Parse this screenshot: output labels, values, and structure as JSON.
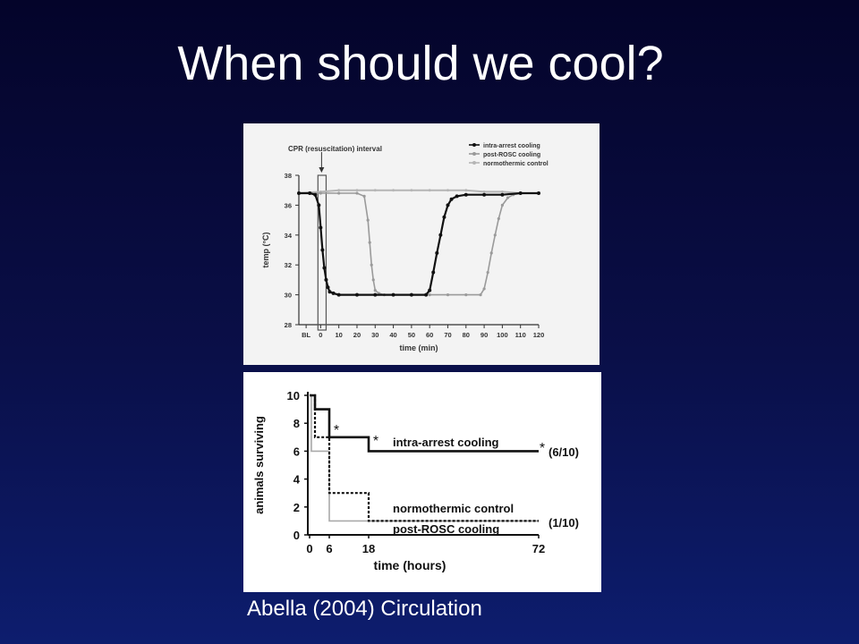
{
  "slide": {
    "title": "When should we cool?",
    "citation": "Abella (2004) Circulation"
  },
  "colors": {
    "background_top": "#04042a",
    "background_bottom": "#0d1d6e",
    "text": "#ffffff",
    "intra_arrest": "#111111",
    "post_rosc": "#9a9a9a",
    "normothermic": "#b5b5b5"
  },
  "chart_data": [
    {
      "type": "line",
      "title": "",
      "xlabel": "time (min)",
      "ylabel": "temp (°C)",
      "annotation": "CPR (resuscitation) interval",
      "x_ticks": [
        "BL",
        "0",
        "10",
        "20",
        "30",
        "40",
        "50",
        "60",
        "70",
        "80",
        "90",
        "100",
        "110",
        "120"
      ],
      "y_ticks": [
        28,
        30,
        32,
        34,
        36,
        38
      ],
      "xlim": [
        -12,
        120
      ],
      "ylim": [
        28,
        38
      ],
      "legend": [
        "intra-arrest cooling",
        "post-ROSC cooling",
        "normothermic control"
      ],
      "legend_position": "top-right",
      "series": [
        {
          "name": "intra-arrest cooling",
          "x": [
            -12,
            -6,
            -3,
            -1,
            0,
            1,
            2,
            3,
            4,
            5,
            7,
            10,
            20,
            30,
            40,
            50,
            58,
            60,
            62,
            64,
            66,
            68,
            70,
            72,
            75,
            80,
            90,
            100,
            110,
            120
          ],
          "y": [
            36.8,
            36.8,
            36.7,
            36.0,
            34.5,
            33.0,
            31.8,
            31.0,
            30.5,
            30.2,
            30.1,
            30.0,
            30.0,
            30.0,
            30.0,
            30.0,
            30.0,
            30.3,
            31.5,
            32.8,
            34.0,
            35.2,
            36.0,
            36.4,
            36.6,
            36.7,
            36.7,
            36.7,
            36.8,
            36.8
          ]
        },
        {
          "name": "post-ROSC cooling",
          "x": [
            -12,
            0,
            10,
            20,
            24,
            26,
            27,
            28,
            29,
            30,
            32,
            35,
            40,
            50,
            60,
            70,
            80,
            88,
            90,
            92,
            94,
            96,
            98,
            100,
            103,
            106,
            110,
            120
          ],
          "y": [
            36.8,
            36.8,
            36.8,
            36.8,
            36.6,
            35.0,
            33.5,
            32.0,
            31.0,
            30.3,
            30.1,
            30.0,
            30.0,
            30.0,
            30.0,
            30.0,
            30.0,
            30.0,
            30.4,
            31.5,
            32.8,
            34.0,
            35.1,
            36.0,
            36.5,
            36.7,
            36.8,
            36.8
          ]
        },
        {
          "name": "normothermic control",
          "x": [
            -12,
            0,
            10,
            20,
            30,
            40,
            50,
            60,
            70,
            80,
            90,
            100,
            110,
            120
          ],
          "y": [
            36.8,
            36.9,
            37.0,
            37.0,
            37.0,
            37.0,
            37.0,
            37.0,
            37.0,
            37.0,
            36.9,
            36.9,
            36.8,
            36.8
          ]
        }
      ]
    },
    {
      "type": "line",
      "title": "",
      "xlabel": "time (hours)",
      "ylabel": "animals surviving",
      "x_ticks": [
        0,
        6,
        18,
        72
      ],
      "y_ticks": [
        0,
        2,
        4,
        6,
        8,
        10
      ],
      "ylim": [
        0,
        10
      ],
      "series": [
        {
          "name": "intra-arrest cooling",
          "step_x": [
            0,
            2,
            2,
            6,
            6,
            18,
            18,
            72
          ],
          "step_y": [
            10,
            10,
            9,
            9,
            7,
            7,
            6,
            6
          ],
          "end_label": "(6/10)"
        },
        {
          "name": "normothermic control",
          "step_x": [
            0,
            2,
            2,
            6,
            6,
            18,
            18,
            72
          ],
          "step_y": [
            10,
            10,
            7,
            7,
            3,
            3,
            1,
            1
          ],
          "end_label": "(1/10)"
        },
        {
          "name": "post-ROSC cooling",
          "step_x": [
            0,
            1,
            1,
            6,
            6,
            72
          ],
          "step_y": [
            10,
            10,
            6,
            6,
            1,
            1
          ]
        }
      ],
      "significance_marker": "*",
      "significance_at_x": [
        6,
        18,
        72
      ]
    }
  ]
}
